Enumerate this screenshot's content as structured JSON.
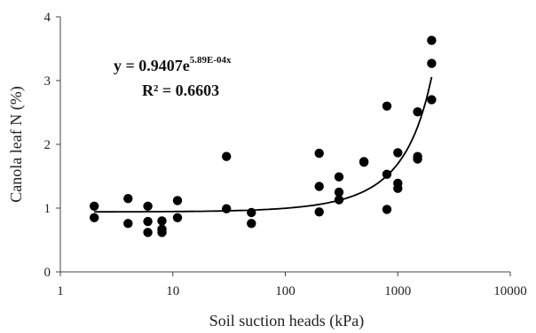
{
  "chart_data": {
    "type": "scatter",
    "x_scale": "log",
    "xlim": [
      1,
      10000
    ],
    "ylim": [
      0,
      4
    ],
    "x_ticks": [
      1,
      10,
      100,
      1000,
      10000
    ],
    "x_tick_labels": [
      "1",
      "10",
      "100",
      "1000",
      "10000"
    ],
    "y_ticks": [
      0,
      1,
      2,
      3,
      4
    ],
    "y_tick_labels": [
      "0",
      "1",
      "2",
      "3",
      "4"
    ],
    "xlabel": "Soil suction heads (kPa)",
    "ylabel": "Canola leaf  N (%)",
    "grid": false,
    "legend": "none",
    "points": [
      {
        "x": 2,
        "y": 1.03
      },
      {
        "x": 2,
        "y": 0.85
      },
      {
        "x": 4,
        "y": 1.15
      },
      {
        "x": 4,
        "y": 0.76
      },
      {
        "x": 6,
        "y": 1.03
      },
      {
        "x": 6,
        "y": 0.79
      },
      {
        "x": 6,
        "y": 0.62
      },
      {
        "x": 8,
        "y": 0.8
      },
      {
        "x": 8,
        "y": 0.67
      },
      {
        "x": 8,
        "y": 0.62
      },
      {
        "x": 11,
        "y": 1.12
      },
      {
        "x": 11,
        "y": 0.85
      },
      {
        "x": 30,
        "y": 1.81
      },
      {
        "x": 30,
        "y": 0.99
      },
      {
        "x": 50,
        "y": 0.93
      },
      {
        "x": 50,
        "y": 0.76
      },
      {
        "x": 200,
        "y": 1.86
      },
      {
        "x": 200,
        "y": 1.34
      },
      {
        "x": 200,
        "y": 0.94
      },
      {
        "x": 300,
        "y": 1.49
      },
      {
        "x": 300,
        "y": 1.25
      },
      {
        "x": 300,
        "y": 1.13
      },
      {
        "x": 500,
        "y": 1.73
      },
      {
        "x": 500,
        "y": 1.72
      },
      {
        "x": 800,
        "y": 2.6
      },
      {
        "x": 800,
        "y": 1.53
      },
      {
        "x": 800,
        "y": 0.98
      },
      {
        "x": 1000,
        "y": 1.87
      },
      {
        "x": 1000,
        "y": 1.39
      },
      {
        "x": 1000,
        "y": 1.31
      },
      {
        "x": 1500,
        "y": 2.51
      },
      {
        "x": 1500,
        "y": 1.81
      },
      {
        "x": 1500,
        "y": 1.77
      },
      {
        "x": 2000,
        "y": 3.63
      },
      {
        "x": 2000,
        "y": 3.27
      },
      {
        "x": 2000,
        "y": 2.7
      }
    ],
    "trendline": {
      "type": "exponential",
      "a": 0.9407,
      "b": 0.000589,
      "x_range": [
        2,
        2000
      ],
      "equation_prefix": "y = 0.9407e",
      "equation_exponent": "5.89E-04x",
      "r_squared_label": "R² = 0.6603"
    },
    "colors": {
      "marker": "#000000",
      "axis": "#444444",
      "line": "#000000"
    }
  }
}
